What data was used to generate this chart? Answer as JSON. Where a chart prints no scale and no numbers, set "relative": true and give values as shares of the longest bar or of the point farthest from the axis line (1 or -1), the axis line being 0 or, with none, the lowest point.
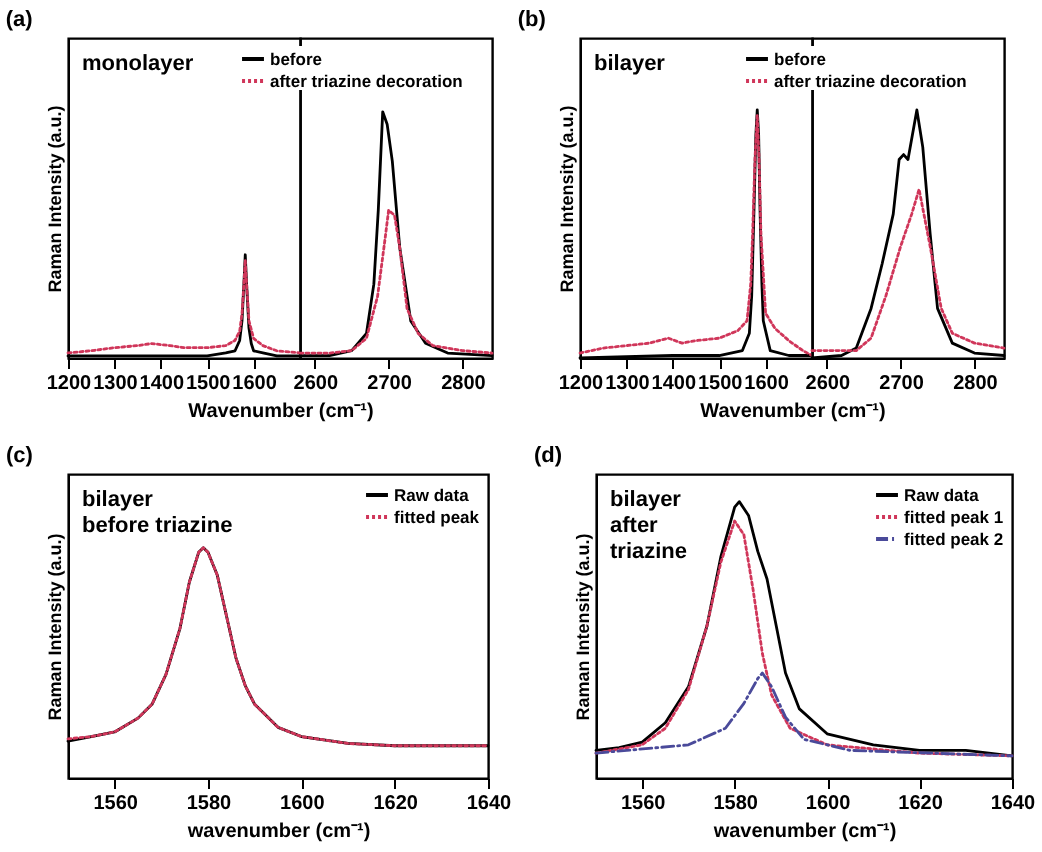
{
  "chart_data": [
    {
      "type": "line",
      "title": "(a)",
      "ylabel": "Raman Intensity (a.u.)",
      "xlabel": "Wavenumber (cm⁻¹)",
      "annotations": [
        "monolayer"
      ],
      "relative": true,
      "xlim": [
        1200,
        1700
      ],
      "xticks": [
        1200,
        1300,
        1400,
        1500,
        1600
      ],
      "series": [
        {
          "color": "#000000",
          "line_style": "solid",
          "x": [
            1200,
            1300,
            1400,
            1500,
            1540,
            1560,
            1570,
            1575,
            1579,
            1582,
            1585,
            1590,
            1595,
            1600,
            1620,
            1650,
            1700
          ],
          "values": [
            0.02,
            0.02,
            0.02,
            0.02,
            0.05,
            0.07,
            0.17,
            0.36,
            0.71,
            1.0,
            0.71,
            0.29,
            0.14,
            0.07,
            0.05,
            0.02,
            0.02
          ]
        },
        {
          "color": "#d0365a",
          "line_style": "dotted",
          "x": [
            1200,
            1250,
            1300,
            1350,
            1380,
            1420,
            1450,
            1500,
            1540,
            1560,
            1570,
            1575,
            1579,
            1582,
            1585,
            1590,
            1600,
            1620,
            1650,
            1700
          ],
          "values": [
            0.05,
            0.07,
            0.1,
            0.12,
            0.14,
            0.12,
            0.1,
            0.1,
            0.12,
            0.17,
            0.26,
            0.43,
            0.71,
            0.95,
            0.71,
            0.36,
            0.19,
            0.12,
            0.07,
            0.05
          ]
        }
      ]
    },
    {
      "type": "line",
      "legend": "top left",
      "relative": true,
      "xlim": [
        2580,
        2840
      ],
      "xticks": [
        2600,
        2700,
        2800
      ],
      "series": [
        {
          "name": "before",
          "color": "#000000",
          "line_style": "solid",
          "x": [
            2580,
            2620,
            2650,
            2670,
            2680,
            2686,
            2692,
            2698,
            2705,
            2715,
            2730,
            2750,
            2780,
            2840
          ],
          "values": [
            0.01,
            0.01,
            0.03,
            0.1,
            0.3,
            0.6,
            1.0,
            0.95,
            0.8,
            0.45,
            0.15,
            0.06,
            0.02,
            0.01
          ]
        },
        {
          "name": "after triazine decoration",
          "color": "#d0365a",
          "line_style": "dotted",
          "x": [
            2580,
            2620,
            2650,
            2670,
            2685,
            2695,
            2700,
            2708,
            2715,
            2725,
            2740,
            2760,
            2800,
            2840
          ],
          "values": [
            0.02,
            0.02,
            0.03,
            0.08,
            0.25,
            0.48,
            0.6,
            0.58,
            0.45,
            0.2,
            0.1,
            0.05,
            0.03,
            0.02
          ]
        }
      ]
    },
    {
      "type": "line",
      "title": "(b)",
      "ylabel": "Raman Intensity (a.u.)",
      "xlabel": "Wavenumber (cm⁻¹)",
      "annotations": [
        "bilayer"
      ],
      "relative": true,
      "xlim": [
        1200,
        1700
      ],
      "xticks": [
        1200,
        1300,
        1400,
        1500,
        1600
      ],
      "series": [
        {
          "color": "#000000",
          "line_style": "solid",
          "x": [
            1200,
            1400,
            1500,
            1550,
            1565,
            1570,
            1575,
            1579,
            1582,
            1585,
            1588,
            1592,
            1595,
            1610,
            1650,
            1700
          ],
          "values": [
            0.0,
            0.01,
            0.01,
            0.03,
            0.1,
            0.25,
            0.6,
            0.9,
            1.0,
            0.9,
            0.6,
            0.3,
            0.15,
            0.03,
            0.01,
            0.01
          ]
        },
        {
          "color": "#d0365a",
          "line_style": "dotted",
          "x": [
            1200,
            1250,
            1300,
            1350,
            1390,
            1420,
            1450,
            1500,
            1540,
            1560,
            1568,
            1572,
            1577,
            1582,
            1586,
            1590,
            1600,
            1620,
            1650,
            1680,
            1700
          ],
          "values": [
            0.02,
            0.04,
            0.05,
            0.06,
            0.08,
            0.06,
            0.07,
            0.08,
            0.11,
            0.15,
            0.3,
            0.5,
            0.8,
            0.98,
            0.8,
            0.5,
            0.18,
            0.12,
            0.07,
            0.03,
            0.01
          ]
        }
      ]
    },
    {
      "type": "line",
      "legend": "top left",
      "relative": true,
      "xlim": [
        2580,
        2840
      ],
      "xticks": [
        2600,
        2700,
        2800
      ],
      "series": [
        {
          "name": "before",
          "color": "#000000",
          "line_style": "solid",
          "x": [
            2580,
            2620,
            2640,
            2660,
            2675,
            2690,
            2698,
            2704,
            2710,
            2722,
            2730,
            2740,
            2750,
            2770,
            2800,
            2840
          ],
          "values": [
            0.0,
            0.01,
            0.04,
            0.2,
            0.38,
            0.58,
            0.8,
            0.82,
            0.8,
            1.0,
            0.85,
            0.5,
            0.2,
            0.06,
            0.02,
            0.01
          ]
        },
        {
          "name": "after triazine decoration",
          "color": "#d0365a",
          "line_style": "dotted",
          "x": [
            2580,
            2640,
            2660,
            2680,
            2700,
            2715,
            2725,
            2740,
            2755,
            2770,
            2800,
            2840
          ],
          "values": [
            0.03,
            0.03,
            0.08,
            0.25,
            0.45,
            0.58,
            0.68,
            0.45,
            0.2,
            0.1,
            0.06,
            0.04
          ]
        }
      ]
    },
    {
      "type": "line",
      "title": "(c)",
      "ylabel": "Raman Intensity (a.u.)",
      "xlabel": "wavenumber (cm⁻¹)",
      "annotations": [
        "bilayer\nbefore triazine"
      ],
      "relative": true,
      "legend": "top right",
      "xlim": [
        1550,
        1640
      ],
      "xticks": [
        1560,
        1580,
        1600,
        1620,
        1640
      ],
      "series": [
        {
          "name": "Raw data",
          "color": "#000000",
          "line_style": "solid",
          "x": [
            1550,
            1555,
            1560,
            1565,
            1568,
            1571,
            1574,
            1576,
            1578,
            1579,
            1580,
            1582,
            1584,
            1586,
            1588,
            1590,
            1595,
            1600,
            1610,
            1620,
            1630,
            1640
          ],
          "values": [
            0.16,
            0.18,
            0.2,
            0.26,
            0.32,
            0.45,
            0.65,
            0.85,
            0.98,
            1.0,
            0.98,
            0.88,
            0.7,
            0.52,
            0.4,
            0.32,
            0.22,
            0.18,
            0.15,
            0.14,
            0.14,
            0.14
          ]
        },
        {
          "name": "fitted peak",
          "color": "#d0365a",
          "line_style": "dotted",
          "x": [
            1550,
            1555,
            1560,
            1565,
            1568,
            1571,
            1574,
            1576,
            1578,
            1579,
            1580,
            1582,
            1584,
            1586,
            1588,
            1590,
            1595,
            1600,
            1610,
            1620,
            1630,
            1640
          ],
          "values": [
            0.17,
            0.18,
            0.2,
            0.26,
            0.32,
            0.45,
            0.65,
            0.85,
            0.98,
            1.0,
            0.98,
            0.88,
            0.7,
            0.52,
            0.4,
            0.32,
            0.22,
            0.18,
            0.15,
            0.14,
            0.14,
            0.14
          ]
        }
      ]
    },
    {
      "type": "line",
      "title": "(d)",
      "ylabel": "Raman Intensity (a.u.)",
      "xlabel": "wavenumber (cm⁻¹)",
      "annotations": [
        "bilayer\nafter\ntriazine"
      ],
      "relative": true,
      "legend": "top right",
      "xlim": [
        1550,
        1640
      ],
      "xticks": [
        1560,
        1580,
        1600,
        1620,
        1640
      ],
      "series": [
        {
          "name": "Raw data",
          "color": "#000000",
          "line_style": "solid",
          "x": [
            1550,
            1555,
            1560,
            1565,
            1570,
            1574,
            1577,
            1580,
            1581,
            1583,
            1585,
            1587,
            1589,
            1591,
            1594,
            1600,
            1610,
            1620,
            1630,
            1640
          ],
          "values": [
            0.1,
            0.11,
            0.13,
            0.2,
            0.33,
            0.55,
            0.8,
            0.98,
            1.0,
            0.95,
            0.82,
            0.72,
            0.55,
            0.38,
            0.25,
            0.16,
            0.12,
            0.1,
            0.1,
            0.08
          ]
        },
        {
          "name": "fitted peak 1",
          "color": "#d0365a",
          "line_style": "dotted",
          "x": [
            1550,
            1560,
            1565,
            1570,
            1574,
            1577,
            1580,
            1582,
            1584,
            1586,
            1588,
            1592,
            1600,
            1620,
            1640
          ],
          "values": [
            0.09,
            0.12,
            0.18,
            0.32,
            0.55,
            0.78,
            0.93,
            0.88,
            0.68,
            0.45,
            0.3,
            0.18,
            0.12,
            0.09,
            0.08
          ]
        },
        {
          "name": "fitted peak 2",
          "color": "#4a4a9a",
          "line_style": "dashed",
          "x": [
            1550,
            1570,
            1578,
            1582,
            1585,
            1586,
            1588,
            1591,
            1595,
            1605,
            1640
          ],
          "values": [
            0.09,
            0.12,
            0.18,
            0.27,
            0.36,
            0.38,
            0.33,
            0.22,
            0.14,
            0.1,
            0.08
          ]
        }
      ]
    }
  ]
}
